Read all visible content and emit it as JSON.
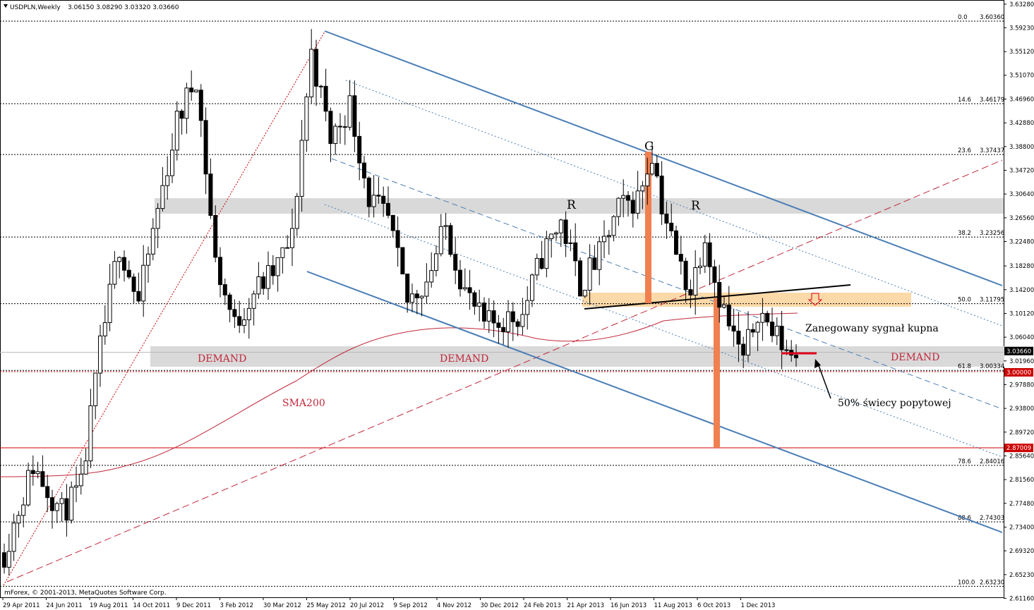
{
  "header": {
    "symbol": "USDPLN,Weekly",
    "ohlc": "3.06150 3.08290 3.03320 3.03660"
  },
  "copyright": "mForex, © 2001-2013, MetaQuotes Software Corp.",
  "chart_data": {
    "type": "candlestick",
    "ylim": [
      2.6133,
      3.6375
    ],
    "y_ticks": [
      "3.63280",
      "3.59230",
      "3.55120",
      "3.51070",
      "3.46960",
      "3.42880",
      "3.38800",
      "3.34720",
      "3.30640",
      "3.26560",
      "3.22480",
      "3.18280",
      "3.14200",
      "3.10120",
      "3.06040",
      "3.01960",
      "2.97880",
      "2.93800",
      "2.89720",
      "2.85640",
      "2.81560",
      "2.77480",
      "2.73400",
      "2.69320",
      "2.65230",
      "2.61160"
    ],
    "x_ticks": [
      "29 Apr 2011",
      "24 Jun 2011",
      "19 Aug 2011",
      "14 Oct 2011",
      "9 Dec 2011",
      "3 Feb 2012",
      "30 Mar 2012",
      "25 May 2012",
      "20 Jul 2012",
      "9 Sep 2012",
      "4 Nov 2012",
      "30 Dec 2012",
      "24 Feb 2013",
      "21 Apr 2013",
      "16 Jun 2013",
      "11 Aug 2013",
      "6 Oct 2013",
      "1 Dec 2013"
    ],
    "fibonacci": [
      {
        "level": "0.0",
        "price": "3.60360",
        "value": 3.6036
      },
      {
        "level": "14.6",
        "price": "3.46179",
        "value": 3.46179
      },
      {
        "level": "23.6",
        "price": "3.37437",
        "value": 3.37437
      },
      {
        "level": "38.2",
        "price": "3.23256",
        "value": 3.23256
      },
      {
        "level": "50.0",
        "price": "3.11795",
        "value": 3.11795
      },
      {
        "level": "61.8",
        "price": "3.00334",
        "value": 3.00334
      },
      {
        "level": "78.6",
        "price": "2.84016",
        "value": 2.84016
      },
      {
        "level": "88.6",
        "price": "2.74303",
        "value": 2.74303
      },
      {
        "level": "100.0",
        "price": "2.63230",
        "value": 2.6323
      }
    ],
    "price_markers": [
      {
        "label": "3.03660",
        "value": 3.0366,
        "color": "#000000"
      },
      {
        "label": "3.00000",
        "value": 3.0,
        "color": "#cc0000"
      },
      {
        "label": "2.87009",
        "value": 2.87009,
        "color": "#cc0000"
      }
    ],
    "zones": [
      {
        "name": "supply",
        "from": 3.281,
        "to": 3.309
      },
      {
        "name": "demand",
        "from": 3.011,
        "to": 3.046
      }
    ],
    "annotations": {
      "demand_labels": [
        "DEMAND",
        "DEMAND",
        "DEMAND"
      ],
      "sma": "SMA200",
      "g": "G",
      "r_left": "R",
      "r_right": "R",
      "signal": "Zanegowany sygnał kupna",
      "half_candle": "50% świecy popytowej"
    },
    "candles": []
  },
  "colors": {
    "channel": "#4a7eb4",
    "sma": "#c0283c",
    "bearish": "#000000",
    "bullish": "#ffffff",
    "zone": "#d9d9d9",
    "orange_zone": "#fcd9a8",
    "bar": "#f08050"
  }
}
